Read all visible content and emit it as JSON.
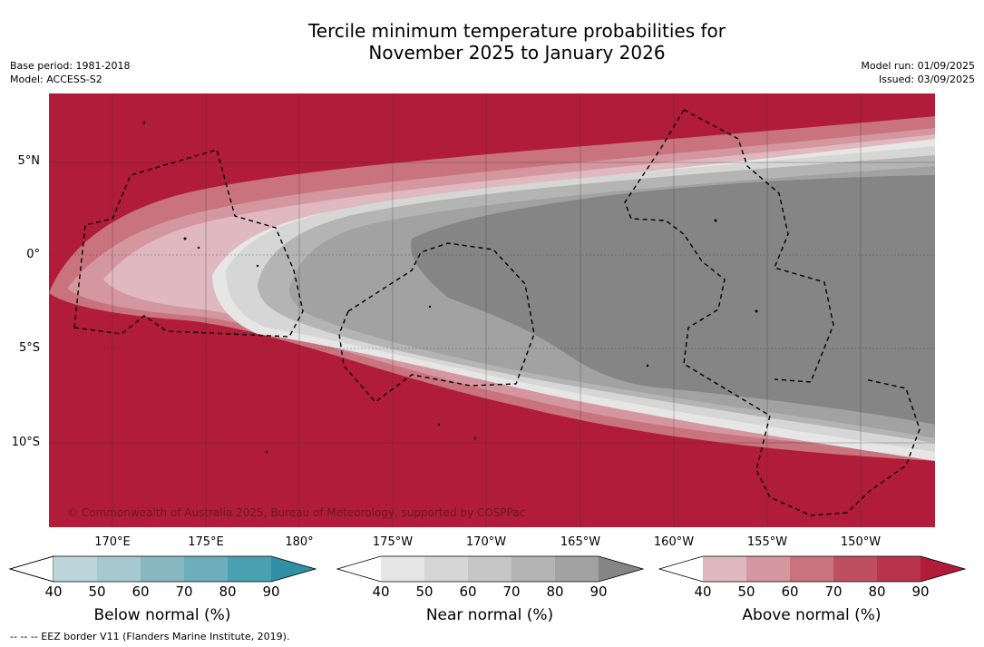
{
  "title_line1": "Tercile minimum temperature probabilities for",
  "title_line2": "November 2025 to January 2026",
  "meta_left": {
    "base_period": "Base period: 1981-2018",
    "model": "Model: ACCESS-S2"
  },
  "meta_right": {
    "model_run": "Model run: 01/09/2025",
    "issued": "Issued: 03/09/2025"
  },
  "map": {
    "lat_labels": [
      "5°N",
      "0°",
      "5°S",
      "10°S"
    ],
    "lon_labels": [
      "170°E",
      "175°E",
      "180°",
      "175°W",
      "170°W",
      "165°W",
      "160°W",
      "155°W",
      "150°W"
    ],
    "copyright": "© Commonwealth of Australia 2025, Bureau of Meteorology, supported by COSPPac"
  },
  "colorbars": [
    {
      "name": "below",
      "title": "Below normal (%)",
      "ticks": [
        "40",
        "50",
        "60",
        "70",
        "80",
        "90"
      ],
      "colors": [
        "#ffffff",
        "#bcd4da",
        "#a6c9cf",
        "#89b8c3",
        "#6caebb",
        "#4aa0b0",
        "#2e8fa5"
      ]
    },
    {
      "name": "near",
      "title": "Near normal (%)",
      "ticks": [
        "40",
        "50",
        "60",
        "70",
        "80",
        "90"
      ],
      "colors": [
        "#ffffff",
        "#e6e6e6",
        "#d6d6d6",
        "#c6c6c6",
        "#b4b4b4",
        "#a2a2a2",
        "#858585"
      ]
    },
    {
      "name": "above",
      "title": "Above normal (%)",
      "ticks": [
        "40",
        "50",
        "60",
        "70",
        "80",
        "90"
      ],
      "colors": [
        "#ffffff",
        "#e0b8bf",
        "#d4969f",
        "#c8737e",
        "#bd4f5f",
        "#b8344a",
        "#b01c39"
      ]
    }
  ],
  "footnote": "--  --  -- EEZ border V11 (Flanders Marine Institute, 2019)."
}
